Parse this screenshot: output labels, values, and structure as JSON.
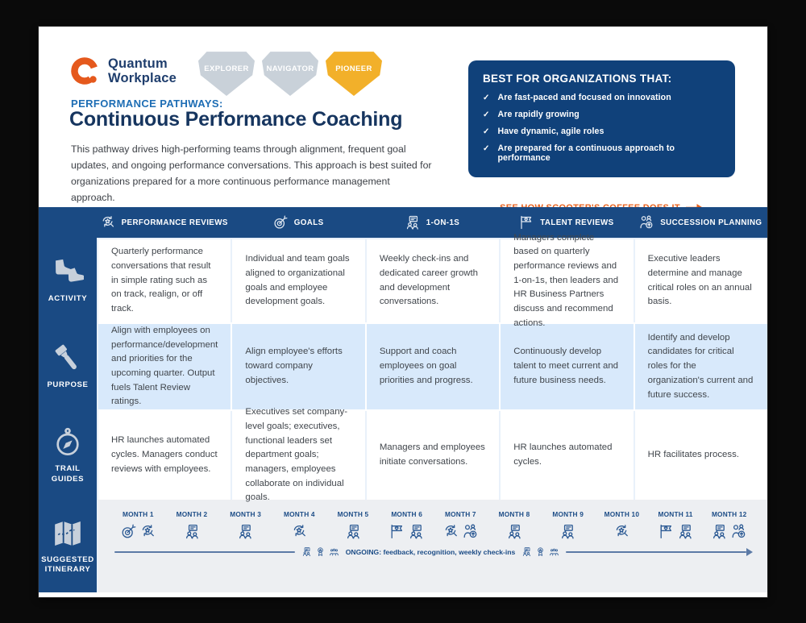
{
  "brand": {
    "line1": "Quantum",
    "line2": "Workplace"
  },
  "badges": [
    {
      "label": "EXPLORER",
      "state": "inactive"
    },
    {
      "label": "NAVIGATOR",
      "state": "inactive"
    },
    {
      "label": "PIONEER",
      "state": "active"
    }
  ],
  "eyebrow": "PERFORMANCE PATHWAYS:",
  "title": "Continuous Performance Coaching",
  "description": "This pathway drives high-performing teams through alignment, frequent goal updates, and ongoing performance conversations. This approach is best suited for organizations prepared for a more continuous performance management approach.",
  "best_for": {
    "title": "BEST FOR ORGANIZATIONS THAT:",
    "items": [
      "Are fast-paced and focused on innovation",
      "Are rapidly growing",
      "Have dynamic, agile roles",
      "Are prepared for a continuous approach to performance"
    ]
  },
  "cta": {
    "label": "SEE HOW SCOOTER'S COFFEE DOES IT",
    "icon": "arrow-right-icon"
  },
  "colors": {
    "navy": "#1a4a83",
    "orange": "#e8611c",
    "gold": "#f2b02a",
    "row_blue": "#d8e9fb"
  },
  "table": {
    "columns": [
      {
        "label": "PERFORMANCE REVIEWS",
        "icon": "performance-reviews-icon"
      },
      {
        "label": "GOALS",
        "icon": "goals-target-icon"
      },
      {
        "label": "1-ON-1S",
        "icon": "one-on-one-icon"
      },
      {
        "label": "TALENT REVIEWS",
        "icon": "talent-flag-icon"
      },
      {
        "label": "SUCCESSION PLANNING",
        "icon": "succession-icon"
      }
    ],
    "rows": [
      {
        "label": "ACTIVITY",
        "icon": "hiking-boots-icon",
        "cells": [
          "Quarterly performance conversations that result in simple rating such as on track, realign, or off track.",
          "Individual and team goals aligned to organizational goals and employee development goals.",
          "Weekly check-ins and dedicated career growth and development conversations.",
          "Managers complete based on quarterly performance reviews and 1-on-1s, then leaders and HR Business Partners discuss and recommend actions.",
          "Executive leaders determine and manage critical roles on an annual basis."
        ]
      },
      {
        "label": "PURPOSE",
        "icon": "flashlight-icon",
        "cells": [
          "Align with employees on performance/development and priorities for the upcoming quarter. Output fuels Talent Review ratings.",
          "Align employee's efforts toward company objectives.",
          "Support and coach employees on goal priorities and progress.",
          "Continuously develop talent to meet current and future business needs.",
          "Identify and develop candidates for critical roles for the organization's current and future success."
        ]
      },
      {
        "label": "TRAIL GUIDES",
        "icon": "compass-icon",
        "cells": [
          "HR launches automated cycles. Managers conduct reviews with employees.",
          "Executives set company-level goals; executives, functional leaders set department goals; managers, employees collaborate on individual goals.",
          "Managers and employees initiate conversations.",
          "HR launches automated cycles.",
          "HR facilitates process."
        ]
      }
    ],
    "itinerary": {
      "label": "SUGGESTED ITINERARY",
      "icon": "folded-map-icon",
      "months": [
        {
          "label": "MONTH 1",
          "icons": [
            "goals",
            "review"
          ]
        },
        {
          "label": "MONTH 2",
          "icons": [
            "1on1"
          ]
        },
        {
          "label": "MONTH 3",
          "icons": [
            "1on1"
          ]
        },
        {
          "label": "MONTH 4",
          "icons": [
            "review"
          ]
        },
        {
          "label": "MONTH 5",
          "icons": [
            "1on1"
          ]
        },
        {
          "label": "MONTH 6",
          "icons": [
            "talent",
            "1on1"
          ]
        },
        {
          "label": "MONTH 7",
          "icons": [
            "review",
            "succession"
          ]
        },
        {
          "label": "MONTH 8",
          "icons": [
            "1on1"
          ]
        },
        {
          "label": "MONTH 9",
          "icons": [
            "1on1"
          ]
        },
        {
          "label": "MONTH 10",
          "icons": [
            "review"
          ]
        },
        {
          "label": "MONTH 11",
          "icons": [
            "talent",
            "1on1"
          ]
        },
        {
          "label": "MONTH 12",
          "icons": [
            "1on1",
            "succession"
          ]
        }
      ],
      "ongoing_label": "ONGOING: feedback, recognition, weekly check-ins",
      "ongoing_icons": [
        "1on1",
        "award",
        "group"
      ]
    }
  }
}
